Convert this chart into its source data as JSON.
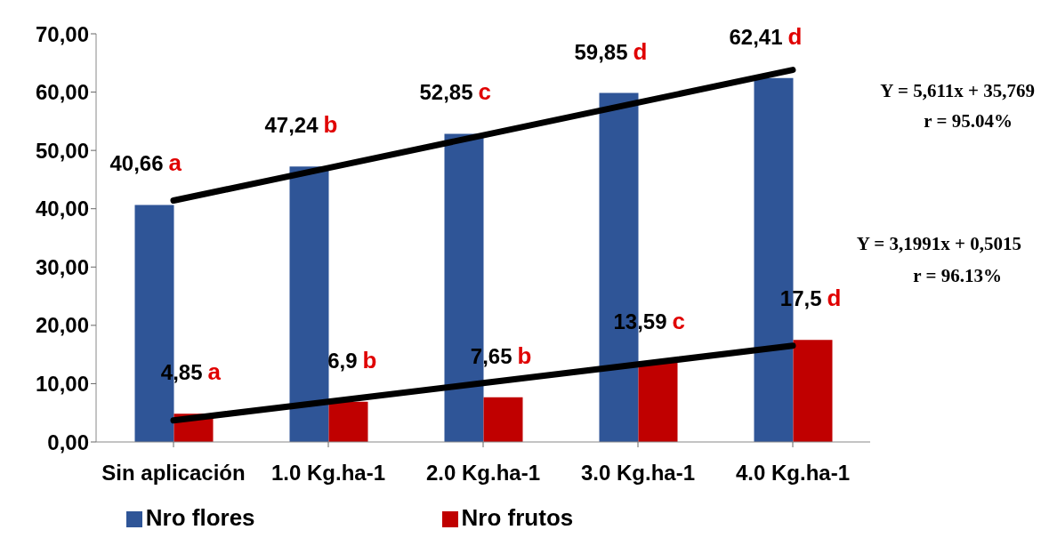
{
  "chart_data": {
    "type": "bar",
    "categories": [
      "Sin aplicación",
      "1.0 Kg.ha-1",
      "2.0 Kg.ha-1",
      "3.0  Kg.ha-1",
      "4.0  Kg.ha-1"
    ],
    "series": [
      {
        "name": "Nro flores",
        "color": "#2f5597",
        "values": [
          40.66,
          47.24,
          52.85,
          59.85,
          62.41
        ],
        "value_labels": [
          "40,66",
          "47,24",
          "52,85",
          "59,85",
          "62,41"
        ]
      },
      {
        "name": "Nro frutos",
        "color": "#c00000",
        "values": [
          4.85,
          6.9,
          7.65,
          13.59,
          17.5
        ],
        "value_labels": [
          "4,85",
          "6,9",
          "7,65",
          "13,59",
          "17,5"
        ]
      },
      {
        "type": "line",
        "color": "#000000",
        "values": [
          41.4,
          47,
          52.6,
          58.2,
          63.8
        ]
      },
      {
        "type": "line",
        "color": "#000000",
        "values": [
          3.7,
          6.9,
          10.1,
          13.3,
          16.5
        ]
      }
    ],
    "ylim": [
      0,
      70
    ],
    "yticks": [
      {
        "value": 0,
        "label": "0,00"
      },
      {
        "value": 10,
        "label": "10,00"
      },
      {
        "value": 20,
        "label": "20,00"
      },
      {
        "value": 30,
        "label": "30,00"
      },
      {
        "value": 40,
        "label": "40,00"
      },
      {
        "value": 50,
        "label": "50,00"
      },
      {
        "value": 60,
        "label": "60,00"
      },
      {
        "value": 70,
        "label": "70,00"
      }
    ],
    "grid": false,
    "legend": "bottom",
    "marker": "none",
    "line_style": "solid",
    "annotations": [
      "Y = 5,611x + 35,769",
      "r = 95.04%",
      "Y = 3,1991x + 0,5015",
      "r = 96.13%",
      {
        "text": "a",
        "x": "Sin aplicación",
        "y": 40.66
      },
      {
        "text": "b",
        "x": "1.0 Kg.ha-1",
        "y": 47.24
      },
      {
        "text": "c",
        "x": "2.0 Kg.ha-1",
        "y": 52.85
      },
      {
        "text": "d",
        "x": "3.0  Kg.ha-1",
        "y": 59.85
      },
      {
        "text": "d",
        "x": "4.0  Kg.ha-1",
        "y": 62.41
      },
      {
        "text": "a",
        "x": "Sin aplicación",
        "y": 4.85
      },
      {
        "text": "b",
        "x": "1.0 Kg.ha-1",
        "y": 6.9
      },
      {
        "text": "b",
        "x": "2.0 Kg.ha-1",
        "y": 7.65
      },
      {
        "text": "c",
        "x": "3.0  Kg.ha-1",
        "y": 13.59
      },
      {
        "text": "d",
        "x": "4.0  Kg.ha-1",
        "y": 17.5
      }
    ]
  }
}
